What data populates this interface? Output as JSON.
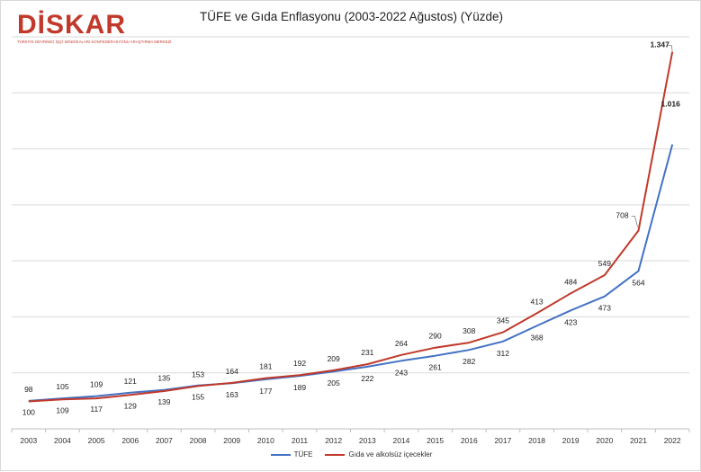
{
  "logo": {
    "text": "DİSKAR",
    "subtitle": "TÜRKİYE DEVRİMCİ İŞÇİ SENDİKALARI KONFEDERASYONU ARAŞTIRMA MERKEZİ"
  },
  "chart_data": {
    "type": "line",
    "title": "TÜFE ve Gıda Enflasyonu (2003-2022 Ağustos) (Yüzde)",
    "xlabel": "",
    "ylabel": "",
    "categories": [
      "2003",
      "2004",
      "2005",
      "2006",
      "2007",
      "2008",
      "2009",
      "2010",
      "2011",
      "2012",
      "2013",
      "2014",
      "2015",
      "2016",
      "2017",
      "2018",
      "2019",
      "2020",
      "2021",
      "2022"
    ],
    "ylim": [
      0,
      1400
    ],
    "grid": true,
    "legend_position": "bottom",
    "series": [
      {
        "name": "TÜFE",
        "color": "#4472c4",
        "values": [
          100,
          109,
          117,
          129,
          139,
          155,
          163,
          177,
          189,
          205,
          222,
          243,
          261,
          282,
          312,
          368,
          423,
          473,
          564,
          1016
        ],
        "labels": [
          "100",
          "109",
          "117",
          "129",
          "139",
          "155",
          "163",
          "177",
          "189",
          "205",
          "222",
          "243",
          "261",
          "282",
          "312",
          "368",
          "423",
          "473",
          "564",
          "1.016"
        ]
      },
      {
        "name": "Gıda ve alkolsüz içecekler",
        "color": "#c0392b",
        "values": [
          98,
          105,
          109,
          121,
          135,
          153,
          164,
          181,
          192,
          209,
          231,
          264,
          290,
          308,
          345,
          413,
          484,
          549,
          708,
          1347
        ],
        "labels": [
          "98",
          "105",
          "109",
          "121",
          "135",
          "153",
          "164",
          "181",
          "192",
          "209",
          "231",
          "264",
          "290",
          "308",
          "345",
          "413",
          "484",
          "549",
          "708",
          "1.347"
        ]
      }
    ]
  }
}
